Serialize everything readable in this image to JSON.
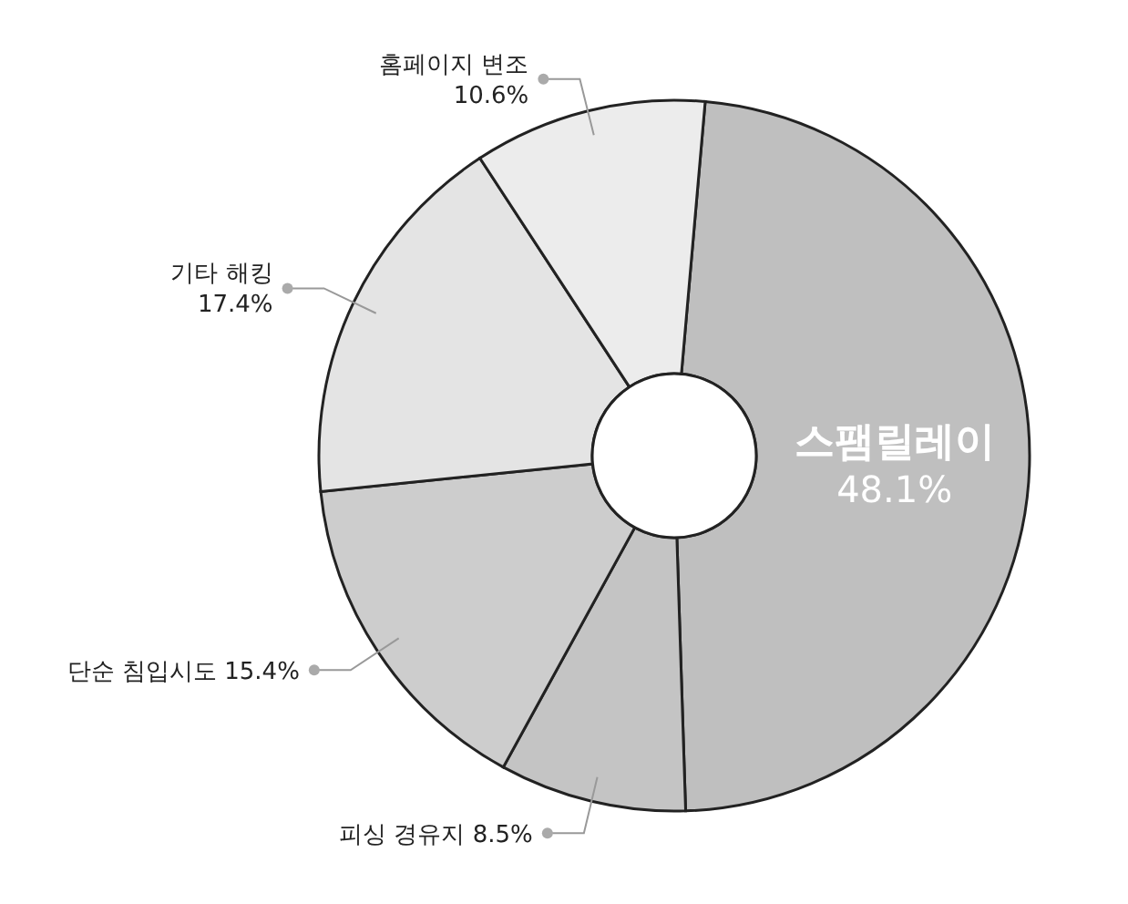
{
  "chart_data": {
    "type": "donut",
    "categories": [
      "스팸릴레이",
      "피싱 경유지",
      "단순 침입시도",
      "기타 해킹",
      "홈페이지 변조"
    ],
    "values": [
      48.1,
      8.5,
      15.4,
      17.4,
      10.6
    ],
    "value_labels": [
      "48.1%",
      "8.5%",
      "15.4%",
      "17.4%",
      "10.6%"
    ],
    "colors": [
      "#bfbfbf",
      "#c4c4c4",
      "#cdcdcd",
      "#e4e4e4",
      "#ececec"
    ]
  }
}
